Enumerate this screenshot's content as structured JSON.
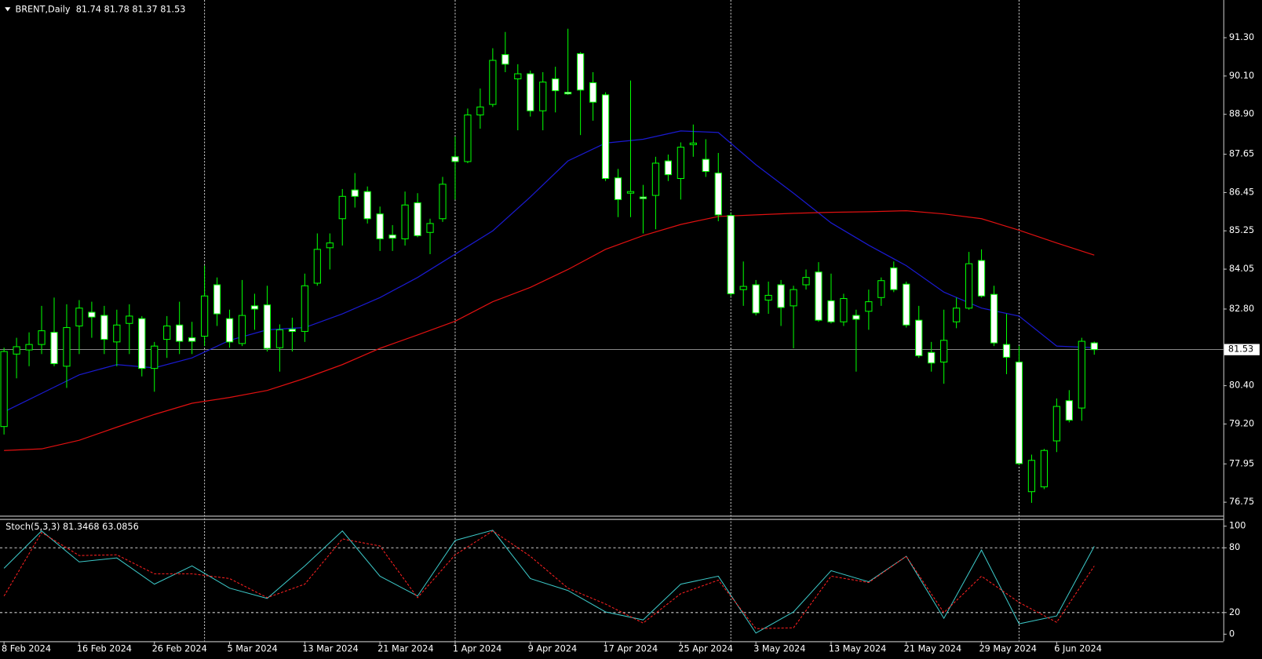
{
  "chart_data": [
    {
      "type": "candlestick",
      "title": "BRENT,Daily  81.74 81.78 81.37 81.53",
      "categories": [
        "8 Feb 2024",
        null,
        null,
        null,
        null,
        null,
        "16 Feb 2024",
        null,
        null,
        null,
        null,
        null,
        "26 Feb 2024",
        null,
        null,
        null,
        null,
        null,
        "5 Mar 2024",
        null,
        null,
        null,
        null,
        null,
        "13 Mar 2024",
        null,
        null,
        null,
        null,
        null,
        "21 Mar 2024",
        null,
        null,
        null,
        null,
        null,
        "1 Apr 2024",
        null,
        null,
        null,
        null,
        null,
        "9 Apr 2024",
        null,
        null,
        null,
        null,
        null,
        "17 Apr 2024",
        null,
        null,
        null,
        null,
        null,
        "25 Apr 2024",
        null,
        null,
        null,
        null,
        null,
        "3 May 2024",
        null,
        null,
        null,
        null,
        null,
        "13 May 2024",
        null,
        null,
        null,
        null,
        null,
        "21 May 2024",
        null,
        null,
        null,
        null,
        null,
        "29 May 2024",
        null,
        null,
        null,
        null,
        null,
        "6 Jun 2024",
        null,
        null,
        null
      ],
      "open": [
        79.12,
        81.39,
        81.52,
        81.69,
        82.07,
        81.01,
        82.27,
        82.7,
        82.6,
        81.77,
        82.35,
        82.5,
        80.94,
        81.85,
        82.3,
        81.9,
        81.95,
        83.56,
        82.5,
        81.72,
        82.9,
        82.93,
        81.59,
        82.17,
        82.1,
        83.61,
        84.72,
        85.63,
        86.53,
        86.48,
        85.78,
        85.12,
        85.0,
        86.13,
        85.2,
        85.63,
        87.57,
        87.42,
        88.88,
        89.21,
        90.77,
        90.01,
        90.17,
        89.01,
        90.01,
        89.59,
        90.8,
        89.89,
        89.51,
        86.91,
        86.43,
        86.31,
        86.36,
        87.44,
        86.89,
        87.95,
        87.49,
        87.06,
        85.73,
        83.41,
        83.56,
        83.08,
        83.56,
        82.9,
        83.56,
        83.96,
        83.06,
        82.4,
        82.6,
        82.73,
        83.16,
        84.09,
        83.58,
        82.45,
        81.44,
        81.14,
        82.4,
        82.83,
        84.32,
        83.26,
        81.69,
        81.14,
        77.08,
        77.23,
        78.67,
        79.93,
        79.7,
        81.74
      ],
      "high": [
        81.59,
        81.9,
        82.07,
        82.9,
        83.16,
        82.95,
        83.08,
        83.03,
        82.9,
        82.78,
        82.95,
        82.58,
        81.77,
        82.58,
        83.03,
        82.4,
        84.16,
        83.79,
        82.78,
        83.71,
        83.28,
        83.53,
        82.32,
        82.53,
        83.91,
        85.17,
        85.17,
        86.56,
        87.06,
        86.64,
        86.01,
        85.43,
        86.48,
        86.43,
        85.63,
        86.94,
        88.2,
        89.08,
        89.71,
        90.97,
        91.48,
        90.47,
        90.27,
        90.22,
        90.39,
        91.58,
        90.85,
        90.22,
        89.59,
        87.19,
        89.96,
        86.69,
        87.57,
        87.64,
        88.02,
        88.58,
        88.12,
        87.69,
        85.8,
        84.29,
        83.71,
        83.66,
        83.71,
        83.53,
        84.04,
        84.27,
        83.91,
        83.28,
        82.78,
        83.41,
        83.79,
        84.29,
        83.66,
        82.9,
        81.77,
        82.78,
        83.16,
        84.59,
        84.67,
        83.53,
        82.65,
        81.64,
        78.24,
        78.42,
        80.0,
        80.26,
        81.9,
        81.78
      ],
      "low": [
        78.87,
        80.63,
        81.01,
        81.39,
        81.01,
        80.33,
        81.39,
        81.9,
        81.39,
        81.01,
        81.39,
        80.69,
        80.21,
        81.27,
        81.39,
        81.39,
        81.64,
        82.27,
        81.59,
        81.64,
        82.15,
        81.47,
        80.84,
        81.47,
        81.77,
        83.53,
        84.04,
        84.79,
        85.98,
        85.48,
        84.62,
        84.62,
        84.79,
        85.05,
        84.52,
        85.53,
        86.23,
        87.37,
        88.45,
        89.13,
        90.22,
        88.4,
        88.83,
        88.4,
        88.96,
        89.51,
        88.25,
        88.7,
        86.81,
        85.68,
        85.68,
        85.17,
        85.3,
        86.81,
        86.23,
        87.57,
        86.94,
        85.55,
        83.21,
        82.9,
        82.6,
        82.65,
        82.27,
        81.57,
        83.41,
        82.4,
        82.35,
        82.27,
        80.84,
        82.15,
        82.9,
        83.33,
        82.22,
        81.27,
        80.84,
        80.46,
        82.2,
        82.78,
        83.16,
        81.64,
        80.76,
        77.91,
        76.73,
        77.16,
        78.32,
        79.25,
        79.3,
        81.37
      ],
      "close": [
        81.47,
        81.62,
        81.69,
        82.12,
        81.09,
        82.22,
        82.83,
        82.55,
        81.85,
        82.3,
        82.58,
        80.94,
        81.64,
        82.27,
        81.79,
        81.79,
        83.21,
        82.65,
        81.77,
        82.6,
        82.8,
        81.57,
        82.15,
        82.1,
        83.53,
        84.67,
        84.87,
        86.33,
        86.33,
        85.63,
        85.0,
        85.02,
        86.06,
        85.1,
        85.48,
        86.71,
        87.42,
        88.88,
        89.13,
        90.59,
        90.47,
        90.17,
        89.01,
        89.91,
        89.64,
        89.54,
        89.66,
        89.28,
        86.89,
        86.23,
        86.48,
        86.26,
        87.37,
        87.01,
        87.87,
        88.0,
        87.11,
        85.75,
        83.28,
        83.51,
        82.68,
        83.23,
        82.85,
        83.41,
        83.79,
        82.45,
        82.4,
        83.13,
        82.48,
        83.03,
        83.69,
        83.41,
        82.3,
        81.34,
        81.11,
        81.82,
        82.83,
        84.22,
        83.21,
        81.74,
        81.29,
        77.96,
        78.06,
        78.37,
        79.75,
        79.32,
        81.79,
        81.53
      ],
      "bull_color": "#000000",
      "bear_color": "#ffffff",
      "wick_color": "#00ff00",
      "series": [
        {
          "color": "#1a1ad0",
          "x": [
            0,
            3,
            6,
            9,
            12,
            15,
            18,
            21,
            24,
            27,
            30,
            33,
            36,
            39,
            42,
            45,
            48,
            51,
            54,
            57,
            60,
            63,
            66,
            69,
            72,
            75,
            78,
            81,
            84,
            87
          ],
          "values": [
            79.58,
            80.16,
            80.74,
            81.06,
            80.96,
            81.27,
            81.82,
            82.15,
            82.22,
            82.65,
            83.16,
            83.79,
            84.52,
            85.25,
            86.31,
            87.44,
            88.0,
            88.12,
            88.38,
            88.33,
            87.32,
            86.43,
            85.5,
            84.8,
            84.16,
            83.33,
            82.83,
            82.58,
            81.64,
            81.59
          ]
        },
        {
          "color": "#e01010",
          "x": [
            0,
            3,
            6,
            9,
            12,
            15,
            18,
            21,
            24,
            27,
            30,
            33,
            36,
            39,
            42,
            45,
            48,
            51,
            54,
            57,
            60,
            63,
            66,
            69,
            72,
            75,
            78,
            81,
            84,
            87
          ],
          "values": [
            78.37,
            78.42,
            78.69,
            79.1,
            79.5,
            79.85,
            80.03,
            80.25,
            80.63,
            81.06,
            81.57,
            81.99,
            82.42,
            83.03,
            83.48,
            84.04,
            84.67,
            85.1,
            85.45,
            85.7,
            85.75,
            85.8,
            85.83,
            85.85,
            85.88,
            85.78,
            85.63,
            85.27,
            84.87,
            84.49
          ]
        }
      ],
      "current_price": 81.53,
      "grid_x": [
        16,
        36,
        58,
        81
      ],
      "ylim": [
        76.35,
        92.38
      ],
      "yticks": [
        {
          "value": 91.3,
          "label": "91.30"
        },
        {
          "value": 90.1,
          "label": "90.10"
        },
        {
          "value": 88.9,
          "label": "88.90"
        },
        87.65,
        86.45,
        85.25,
        84.05,
        {
          "value": 82.8,
          "label": "82.80"
        },
        {
          "value": 80.4,
          "label": "80.40"
        },
        {
          "value": 79.2,
          "label": "79.20"
        },
        77.95,
        76.75
      ]
    },
    {
      "type": "line",
      "title": "Stoch(5,3,3) 81.3468 63.0856",
      "x": [
        0,
        3,
        6,
        9,
        12,
        15,
        18,
        21,
        24,
        27,
        30,
        33,
        36,
        39,
        42,
        45,
        48,
        51,
        54,
        57,
        60,
        63,
        66,
        69,
        72,
        75,
        78,
        81,
        84,
        87
      ],
      "series": [
        {
          "color": "#3cc8c8",
          "values": [
            61,
            95.6,
            66.9,
            70.6,
            46.3,
            63.2,
            42.6,
            33.1,
            63.2,
            95.6,
            53.7,
            35.3,
            86.8,
            96.3,
            51.5,
            40.4,
            20.6,
            13.2,
            46.3,
            53.7,
            1,
            20.6,
            58.8,
            48.5,
            72.1,
            14.7,
            77.9,
            9.6,
            16.9,
            81.3468
          ]
        },
        {
          "color": "#ff2020",
          "dash": true,
          "values": [
            35.3,
            94.1,
            72.8,
            73.5,
            55.9,
            55.9,
            51.5,
            33.8,
            46.3,
            88.2,
            81.6,
            33.8,
            73.5,
            95.6,
            72.1,
            42.6,
            27.9,
            10.3,
            37.5,
            50,
            5.1,
            5.9,
            53.7,
            47.8,
            72.1,
            19.9,
            53.7,
            29.4,
            11,
            63.0856
          ]
        }
      ],
      "levels": [
        20,
        80
      ],
      "ylim": [
        -6.6,
        105.9
      ],
      "yticks": [
        0,
        20,
        80,
        100
      ]
    }
  ]
}
